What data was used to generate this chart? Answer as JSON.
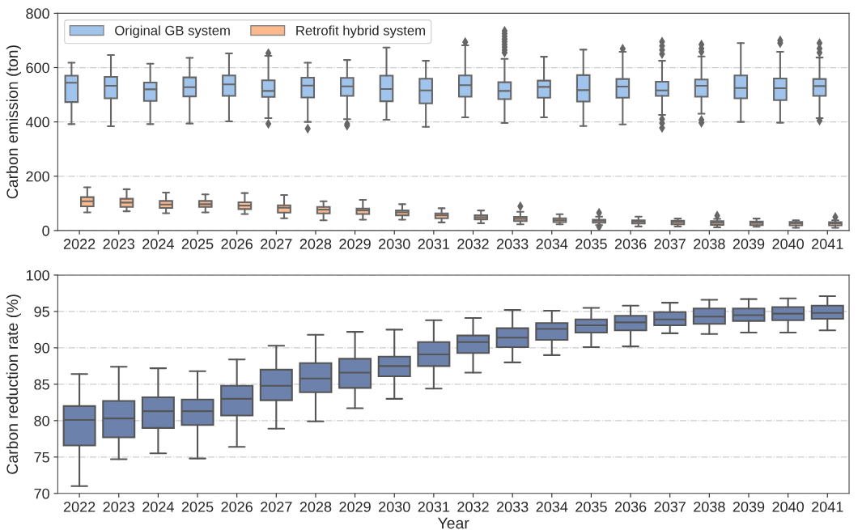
{
  "chart_data": [
    {
      "type": "box",
      "ylabel": "Carbon emission (ton)",
      "categories": [
        "2022",
        "2023",
        "2024",
        "2025",
        "2026",
        "2027",
        "2028",
        "2029",
        "2030",
        "2031",
        "2032",
        "2033",
        "2034",
        "2035",
        "2036",
        "2037",
        "2038",
        "2039",
        "2040",
        "2041"
      ],
      "ylim": [
        0,
        800
      ],
      "yticks": [
        0,
        200,
        400,
        600,
        800
      ],
      "grid": "y",
      "legend": "top left",
      "marker": "diamond",
      "series": [
        {
          "name": "Original GB system",
          "color": "#a1c4ec",
          "boxes": [
            {
              "low": 392,
              "q1": 473,
              "median": 544,
              "q3": 570,
              "high": 618
            },
            {
              "low": 384,
              "q1": 487,
              "median": 533,
              "q3": 566,
              "high": 646
            },
            {
              "low": 392,
              "q1": 477,
              "median": 520,
              "q3": 545,
              "high": 614
            },
            {
              "low": 394,
              "q1": 494,
              "median": 528,
              "q3": 564,
              "high": 636
            },
            {
              "low": 402,
              "q1": 496,
              "median": 538,
              "q3": 571,
              "high": 652
            },
            {
              "low": 414,
              "q1": 492,
              "median": 514,
              "q3": 553,
              "high": 643,
              "outliers": [
                653,
                393
              ]
            },
            {
              "low": 400,
              "q1": 490,
              "median": 534,
              "q3": 563,
              "high": 618,
              "outliers": [
                375
              ]
            },
            {
              "low": 410,
              "q1": 496,
              "median": 531,
              "q3": 562,
              "high": 628,
              "outliers": [
                392,
                386
              ]
            },
            {
              "low": 408,
              "q1": 476,
              "median": 521,
              "q3": 570,
              "high": 674
            },
            {
              "low": 382,
              "q1": 468,
              "median": 516,
              "q3": 559,
              "high": 625
            },
            {
              "low": 417,
              "q1": 493,
              "median": 535,
              "q3": 571,
              "high": 682,
              "outliers": [
                694
              ]
            },
            {
              "low": 396,
              "q1": 484,
              "median": 514,
              "q3": 546,
              "high": 632,
              "outliers": [
                655,
                665,
                675,
                685,
                695,
                705,
                715,
                725,
                735
              ]
            },
            {
              "low": 417,
              "q1": 489,
              "median": 529,
              "q3": 552,
              "high": 640
            },
            {
              "low": 385,
              "q1": 475,
              "median": 517,
              "q3": 572,
              "high": 666
            },
            {
              "low": 391,
              "q1": 489,
              "median": 530,
              "q3": 558,
              "high": 658,
              "outliers": [
                669
              ]
            },
            {
              "low": 426,
              "q1": 496,
              "median": 516,
              "q3": 548,
              "high": 625,
              "outliers": [
                650,
                665,
                680,
                695,
                410,
                395,
                378
              ]
            },
            {
              "low": 430,
              "q1": 493,
              "median": 533,
              "q3": 556,
              "high": 641,
              "outliers": [
                658,
                670,
                685,
                407,
                397
              ]
            },
            {
              "low": 400,
              "q1": 487,
              "median": 525,
              "q3": 571,
              "high": 690
            },
            {
              "low": 397,
              "q1": 480,
              "median": 524,
              "q3": 560,
              "high": 658,
              "outliers": [
                690,
                700
              ]
            },
            {
              "low": 414,
              "q1": 496,
              "median": 532,
              "q3": 558,
              "high": 637,
              "outliers": [
                655,
                670,
                690,
                405
              ]
            }
          ]
        },
        {
          "name": "Retrofit hybrid system",
          "color": "#fdb98e",
          "boxes": [
            {
              "low": 67,
              "q1": 89,
              "median": 108,
              "q3": 123,
              "high": 159
            },
            {
              "low": 71,
              "q1": 87,
              "median": 103,
              "q3": 117,
              "high": 152
            },
            {
              "low": 64,
              "q1": 83,
              "median": 96,
              "q3": 109,
              "high": 140
            },
            {
              "low": 67,
              "q1": 87,
              "median": 97,
              "q3": 109,
              "high": 133
            },
            {
              "low": 61,
              "q1": 79,
              "median": 92,
              "q3": 104,
              "high": 138
            },
            {
              "low": 45,
              "q1": 66,
              "median": 84,
              "q3": 93,
              "high": 131
            },
            {
              "low": 38,
              "q1": 63,
              "median": 77,
              "q3": 87,
              "high": 108
            },
            {
              "low": 40,
              "q1": 61,
              "median": 74,
              "q3": 81,
              "high": 113
            },
            {
              "low": 40,
              "q1": 56,
              "median": 67,
              "q3": 74,
              "high": 97
            },
            {
              "low": 30,
              "q1": 45,
              "median": 56,
              "q3": 63,
              "high": 82
            },
            {
              "low": 27,
              "q1": 41,
              "median": 49,
              "q3": 56,
              "high": 74
            },
            {
              "low": 23,
              "q1": 35,
              "median": 43,
              "q3": 50,
              "high": 69,
              "outliers": [
                89
              ]
            },
            {
              "low": 23,
              "q1": 31,
              "median": 38,
              "q3": 45,
              "high": 60
            },
            {
              "low": 20,
              "q1": 29,
              "median": 36,
              "q3": 40,
              "high": 51,
              "outliers": [
                65,
                14
              ]
            },
            {
              "low": 15,
              "q1": 26,
              "median": 33,
              "q3": 38,
              "high": 51
            },
            {
              "low": 15,
              "q1": 23,
              "median": 31,
              "q3": 36,
              "high": 44
            },
            {
              "low": 12,
              "q1": 21,
              "median": 29,
              "q3": 35,
              "high": 43,
              "outliers": [
                55
              ]
            },
            {
              "low": 14,
              "q1": 20,
              "median": 28,
              "q3": 33,
              "high": 44
            },
            {
              "low": 10,
              "q1": 19,
              "median": 27,
              "q3": 32,
              "high": 38
            },
            {
              "low": 10,
              "q1": 19,
              "median": 27,
              "q3": 31,
              "high": 38,
              "outliers": [
                50
              ]
            }
          ]
        }
      ]
    },
    {
      "type": "box",
      "xlabel": "Year",
      "ylabel": "Carbon reduction rate (%)",
      "categories": [
        "2022",
        "2023",
        "2024",
        "2025",
        "2026",
        "2027",
        "2028",
        "2029",
        "2030",
        "2031",
        "2032",
        "2033",
        "2034",
        "2035",
        "2036",
        "2037",
        "2038",
        "2039",
        "2040",
        "2041"
      ],
      "ylim": [
        70,
        100
      ],
      "yticks": [
        70,
        75,
        80,
        85,
        90,
        95,
        100
      ],
      "grid": "y",
      "series": [
        {
          "color": "#6c82ad",
          "boxes": [
            {
              "low": 71.0,
              "q1": 76.6,
              "median": 80.1,
              "q3": 82.0,
              "high": 86.4
            },
            {
              "low": 74.7,
              "q1": 77.7,
              "median": 80.3,
              "q3": 82.7,
              "high": 87.4
            },
            {
              "low": 75.5,
              "q1": 79.0,
              "median": 81.3,
              "q3": 83.2,
              "high": 87.2
            },
            {
              "low": 74.8,
              "q1": 79.4,
              "median": 81.3,
              "q3": 82.9,
              "high": 86.8
            },
            {
              "low": 76.4,
              "q1": 80.7,
              "median": 83.0,
              "q3": 84.8,
              "high": 88.4
            },
            {
              "low": 78.9,
              "q1": 82.8,
              "median": 84.8,
              "q3": 87.0,
              "high": 90.3
            },
            {
              "low": 79.9,
              "q1": 83.9,
              "median": 85.8,
              "q3": 87.9,
              "high": 91.8
            },
            {
              "low": 81.7,
              "q1": 84.5,
              "median": 86.6,
              "q3": 88.5,
              "high": 92.2
            },
            {
              "low": 83.0,
              "q1": 86.1,
              "median": 87.5,
              "q3": 88.8,
              "high": 92.5
            },
            {
              "low": 84.4,
              "q1": 87.5,
              "median": 89.1,
              "q3": 90.8,
              "high": 93.8
            },
            {
              "low": 86.6,
              "q1": 89.3,
              "median": 90.8,
              "q3": 91.7,
              "high": 94.1
            },
            {
              "low": 88.0,
              "q1": 90.1,
              "median": 91.4,
              "q3": 92.7,
              "high": 95.2
            },
            {
              "low": 89.0,
              "q1": 91.1,
              "median": 92.6,
              "q3": 93.4,
              "high": 95.1
            },
            {
              "low": 90.1,
              "q1": 92.1,
              "median": 93.1,
              "q3": 93.9,
              "high": 95.5
            },
            {
              "low": 90.2,
              "q1": 92.4,
              "median": 93.5,
              "q3": 94.4,
              "high": 95.8
            },
            {
              "low": 92.0,
              "q1": 93.1,
              "median": 93.9,
              "q3": 94.9,
              "high": 96.2
            },
            {
              "low": 91.9,
              "q1": 93.3,
              "median": 94.3,
              "q3": 95.4,
              "high": 96.6
            },
            {
              "low": 92.1,
              "q1": 93.7,
              "median": 94.5,
              "q3": 95.4,
              "high": 96.7
            },
            {
              "low": 92.1,
              "q1": 93.8,
              "median": 94.7,
              "q3": 95.6,
              "high": 96.8
            },
            {
              "low": 92.4,
              "q1": 94.0,
              "median": 94.8,
              "q3": 95.8,
              "high": 97.1
            }
          ]
        }
      ]
    }
  ]
}
